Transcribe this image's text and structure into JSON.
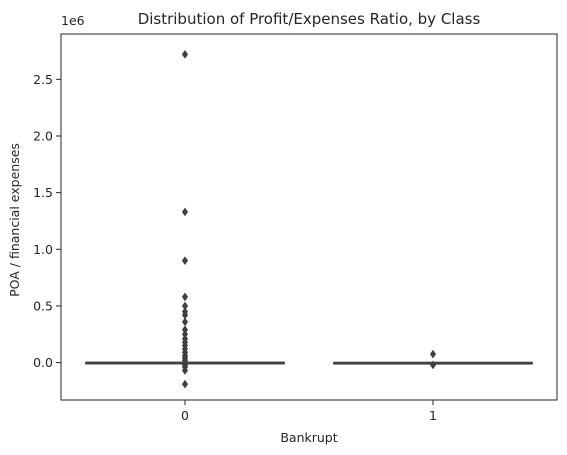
{
  "chart_data": {
    "type": "box",
    "title": "Distribution of Profit/Expenses Ratio, by Class",
    "xlabel": "Bankrupt",
    "ylabel": "POA / financial expenses",
    "y_offset_label": "1e6",
    "ylim": [
      -330000,
      2900000
    ],
    "y_ticks": [
      0.0,
      500000,
      1000000,
      1500000,
      2000000,
      2500000
    ],
    "y_tick_labels": [
      "0.0",
      "0.5",
      "1.0",
      "1.5",
      "2.0",
      "2.5"
    ],
    "categories": [
      "0",
      "1"
    ],
    "grid": false,
    "box_color": "#3f3f3f",
    "boxes": [
      {
        "category": "0",
        "q1": -1000,
        "median": 500,
        "q3": 2500,
        "whisker_low": -8000,
        "whisker_high": 9000,
        "outliers": [
          2720000,
          1330000,
          900000,
          580000,
          500000,
          450000,
          420000,
          360000,
          290000,
          250000,
          210000,
          180000,
          150000,
          120000,
          90000,
          60000,
          40000,
          20000,
          -20000,
          -40000,
          -70000,
          -190000
        ]
      },
      {
        "category": "1",
        "q1": -1000,
        "median": 300,
        "q3": 1500,
        "whisker_low": -4000,
        "whisker_high": 5000,
        "outliers": [
          75000,
          -20000
        ]
      }
    ]
  }
}
